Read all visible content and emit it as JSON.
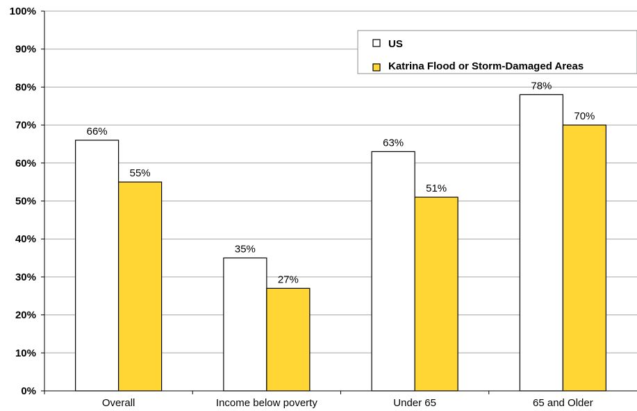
{
  "chart_data": {
    "type": "bar",
    "categories": [
      "Overall",
      "Income below poverty",
      "Under 65",
      "65 and Older"
    ],
    "series": [
      {
        "name": "US",
        "values": [
          66,
          35,
          63,
          78
        ],
        "labels": [
          "66%",
          "35%",
          "63%",
          "78%"
        ],
        "color": "#ffffff"
      },
      {
        "name": "Katrina Flood or Storm-Damaged Areas",
        "values": [
          55,
          27,
          51,
          70
        ],
        "labels": [
          "55%",
          "27%",
          "51%",
          "70%"
        ],
        "color": "#ffd633"
      }
    ],
    "ylim": [
      0,
      100
    ],
    "yticks": [
      0,
      10,
      20,
      30,
      40,
      50,
      60,
      70,
      80,
      90,
      100
    ],
    "ytick_labels": [
      "0%",
      "10%",
      "20%",
      "30%",
      "40%",
      "50%",
      "60%",
      "70%",
      "80%",
      "90%",
      "100%"
    ],
    "grid": true,
    "legend_position": "top-right",
    "title": "",
    "xlabel": "",
    "ylabel": ""
  }
}
